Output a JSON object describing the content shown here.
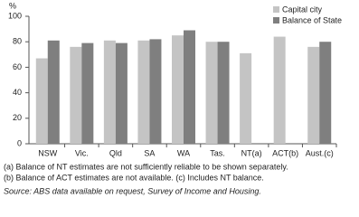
{
  "chart_data": {
    "type": "bar",
    "y_label": "%",
    "categories": [
      "NSW",
      "Vic.",
      "Qld",
      "SA",
      "WA",
      "Tas.",
      "NT(a)",
      "ACT(b)",
      "Aust.(c)"
    ],
    "series": [
      {
        "name": "Capital city",
        "color": "#c4c4c4",
        "values": [
          67,
          76,
          81,
          81,
          85,
          80,
          71,
          84,
          76
        ]
      },
      {
        "name": "Balance of State",
        "color": "#7f7f7f",
        "values": [
          81,
          79,
          79,
          82,
          89,
          80,
          null,
          null,
          80
        ]
      }
    ],
    "ylim": [
      0,
      100
    ],
    "yticks": [
      0,
      20,
      40,
      60,
      80,
      100
    ],
    "grid": false,
    "legend": "upper right",
    "footnotes": [
      "(a) Balance of NT estimates are not sufficiently reliable to be shown separately.",
      "(b) Balance of ACT estimates are not available. (c) Includes NT balance."
    ],
    "source": "Source: ABS data available on request, Survey of Income and Housing."
  }
}
